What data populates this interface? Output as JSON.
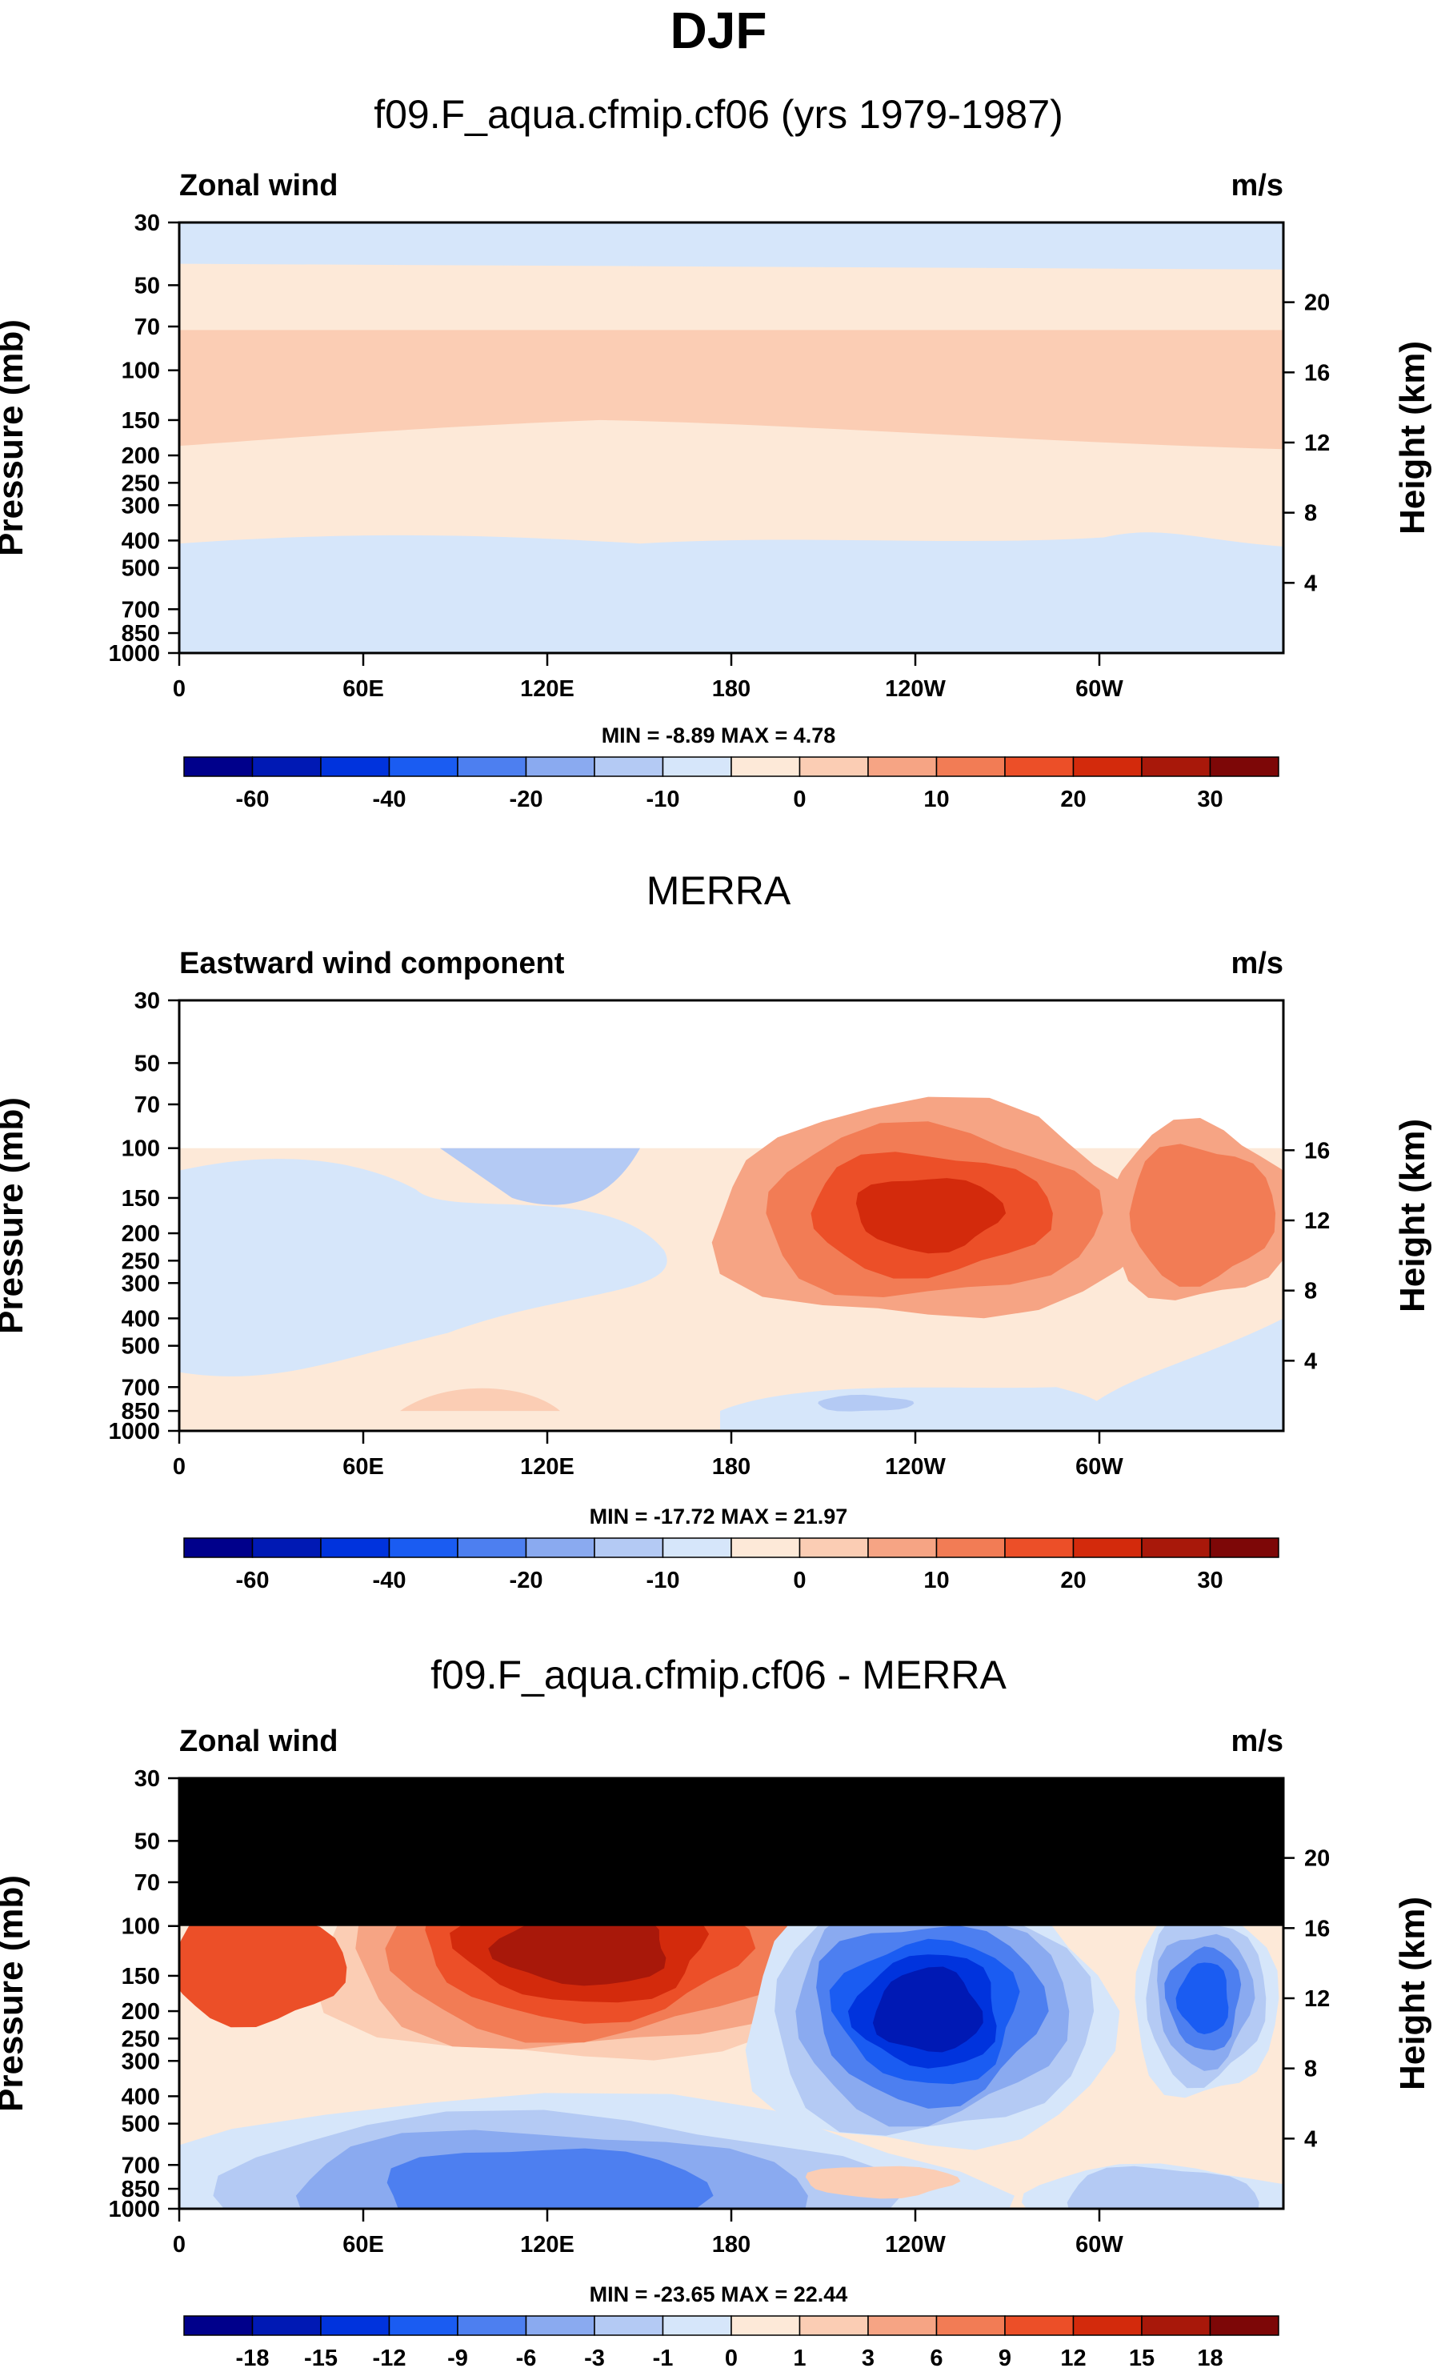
{
  "figure": {
    "title": "DJF"
  },
  "colors": {
    "frame": "#000000",
    "mask": "#000000"
  },
  "chart_data": [
    {
      "type": "heatmap",
      "title": "f09.F_aqua.cfmip.cf06 (yrs 1979-1987)",
      "field_label": "Zonal wind",
      "units": "m/s",
      "xlabel": "",
      "ylabel": "Pressure (mb)",
      "y2label": "Height (km)",
      "xticks": [
        "0",
        "60E",
        "120E",
        "180",
        "120W",
        "60W"
      ],
      "yticks": [
        "30",
        "50",
        "70",
        "100",
        "150",
        "200",
        "250",
        "300",
        "400",
        "500",
        "700",
        "850",
        "1000"
      ],
      "y2ticks": [
        "20",
        "16",
        "12",
        "8",
        "4"
      ],
      "stats": "MIN =  -8.89  MAX =   4.78",
      "colorbar": {
        "colors": [
          "#00008b",
          "#0019b4",
          "#0033dd",
          "#1a5cf2",
          "#4d7ff0",
          "#8aaaf0",
          "#b4caf4",
          "#d6e6fa",
          "#fde9d8",
          "#fbcdb4",
          "#f6a484",
          "#f27c55",
          "#ec4f28",
          "#d32a0c",
          "#a8180a",
          "#7d0707"
        ],
        "labels": [
          "-60",
          "-40",
          "-20",
          "-10",
          "0",
          "10",
          "20",
          "30"
        ]
      },
      "field": {
        "mask_above_100": false,
        "levels": [
          -5,
          0,
          5,
          10
        ]
      }
    },
    {
      "type": "heatmap",
      "title": "MERRA",
      "field_label": "Eastward wind component",
      "units": "m/s",
      "xlabel": "",
      "ylabel": "Pressure (mb)",
      "y2label": "Height (km)",
      "xticks": [
        "0",
        "60E",
        "120E",
        "180",
        "120W",
        "60W"
      ],
      "yticks": [
        "30",
        "50",
        "70",
        "100",
        "150",
        "200",
        "250",
        "300",
        "400",
        "500",
        "700",
        "850",
        "1000"
      ],
      "y2ticks": [
        "16",
        "12",
        "8",
        "4"
      ],
      "stats": "MIN = -17.72  MAX =  21.97",
      "colorbar": {
        "colors": [
          "#00008b",
          "#0019b4",
          "#0033dd",
          "#1a5cf2",
          "#4d7ff0",
          "#8aaaf0",
          "#b4caf4",
          "#d6e6fa",
          "#fde9d8",
          "#fbcdb4",
          "#f6a484",
          "#f27c55",
          "#ec4f28",
          "#d32a0c",
          "#a8180a",
          "#7d0707"
        ],
        "labels": [
          "-60",
          "-40",
          "-20",
          "-10",
          "0",
          "10",
          "20",
          "30"
        ]
      },
      "field": {
        "mask_above_100": "blank",
        "levels": [
          -10,
          -5,
          0,
          5,
          10,
          15,
          20
        ]
      }
    },
    {
      "type": "heatmap",
      "title": "f09.F_aqua.cfmip.cf06 - MERRA",
      "field_label": "Zonal wind",
      "units": "m/s",
      "xlabel": "",
      "ylabel": "Pressure (mb)",
      "y2label": "Height (km)",
      "xticks": [
        "0",
        "60E",
        "120E",
        "180",
        "120W",
        "60W"
      ],
      "yticks": [
        "30",
        "50",
        "70",
        "100",
        "150",
        "200",
        "250",
        "300",
        "400",
        "500",
        "700",
        "850",
        "1000"
      ],
      "y2ticks": [
        "20",
        "16",
        "12",
        "8",
        "4"
      ],
      "stats": "MIN = -23.65  MAX =  22.44",
      "colorbar": {
        "colors": [
          "#00008b",
          "#0019b4",
          "#0033dd",
          "#1a5cf2",
          "#4d7ff0",
          "#8aaaf0",
          "#b4caf4",
          "#d6e6fa",
          "#fde9d8",
          "#fbcdb4",
          "#f6a484",
          "#f27c55",
          "#ec4f28",
          "#d32a0c",
          "#a8180a",
          "#7d0707"
        ],
        "labels": [
          "-18",
          "-15",
          "-12",
          "-9",
          "-6",
          "-3",
          "-1",
          "0",
          "1",
          "3",
          "6",
          "9",
          "12",
          "15",
          "18"
        ]
      },
      "field": {
        "mask_above_100": "black",
        "levels": [
          -18,
          -15,
          -12,
          -9,
          -6,
          -3,
          -1,
          0,
          1,
          3,
          6,
          9,
          12,
          15,
          18
        ]
      }
    }
  ]
}
